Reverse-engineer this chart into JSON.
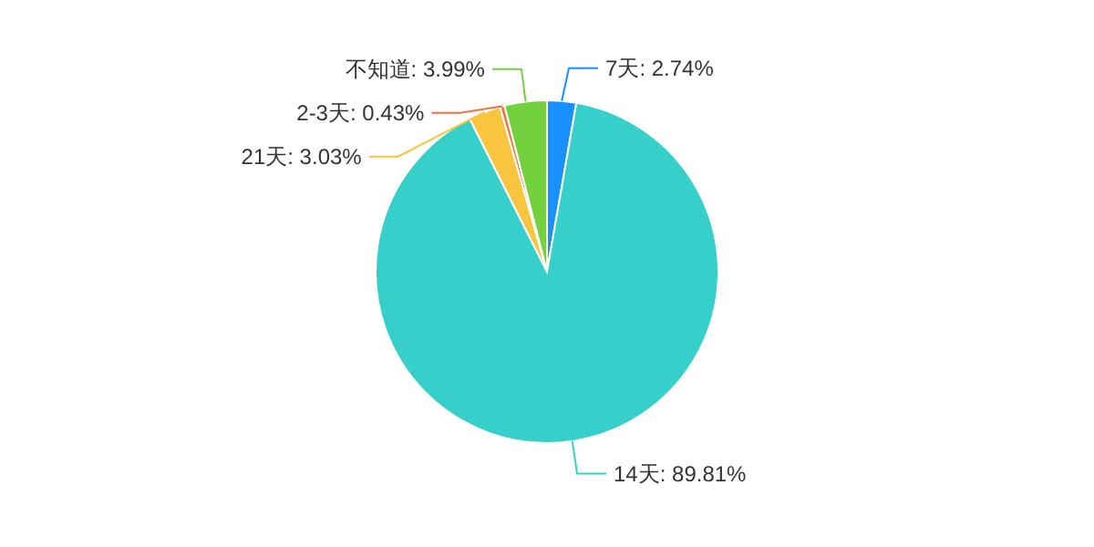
{
  "chart_data": {
    "type": "pie",
    "categories": [
      "7天",
      "14天",
      "21天",
      "2-3天",
      "不知道"
    ],
    "values": [
      2.74,
      89.81,
      3.03,
      0.43,
      3.99
    ],
    "colors": [
      "#1890ff",
      "#36cfc9",
      "#fac53e",
      "#f5713f",
      "#73d13d"
    ],
    "value_labels": [
      ": 2.74%",
      ": 89.81%",
      ": 3.03%",
      ": 0.43%",
      ": 3.99%"
    ]
  }
}
